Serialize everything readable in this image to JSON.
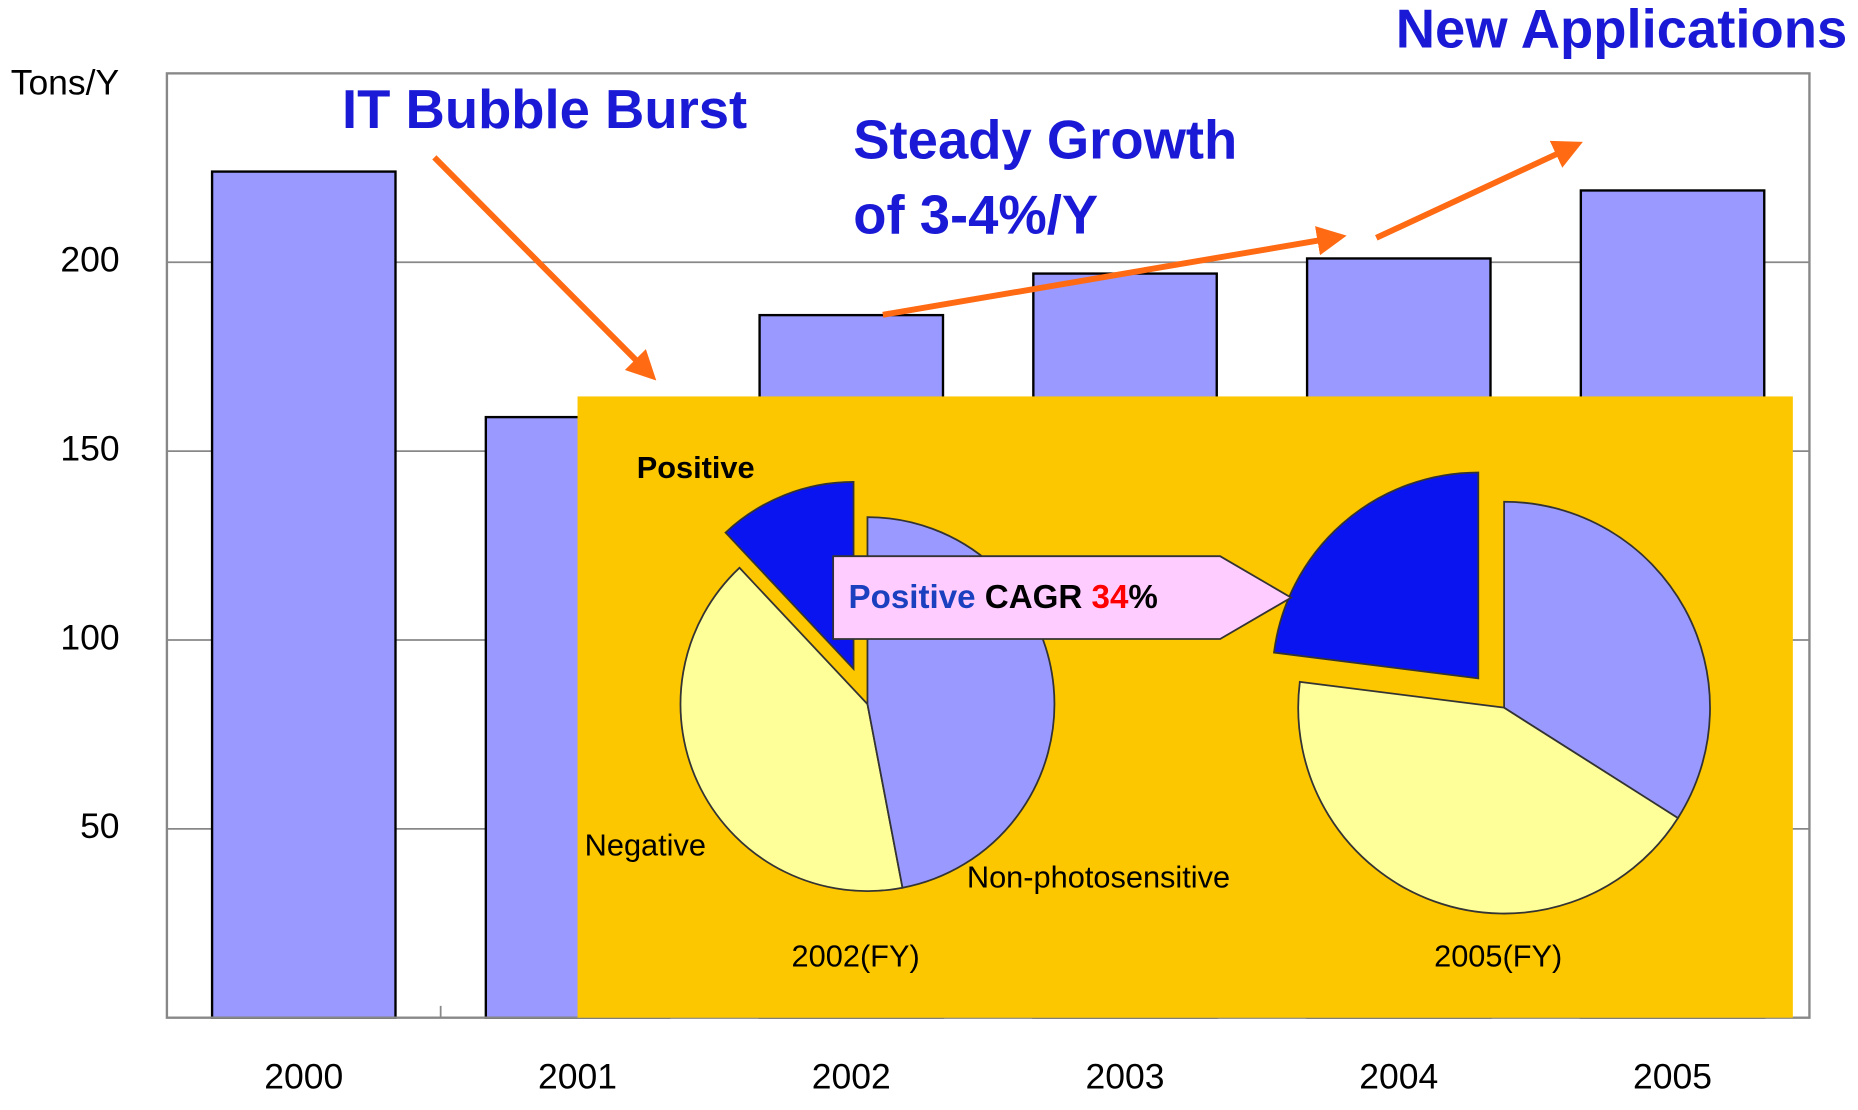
{
  "chart_data": [
    {
      "type": "bar",
      "y_label": "Tons/Y",
      "categories": [
        "2000",
        "2001",
        "2002",
        "2003",
        "2004",
        "2005"
      ],
      "values": [
        224,
        159,
        186,
        197,
        201,
        219
      ],
      "color": "#9999ff",
      "ylim": [
        0,
        250
      ],
      "yticks": [
        50,
        100,
        150,
        200
      ],
      "grid": true,
      "annotations": [
        "IT Bubble Burst",
        "Steady Growth",
        "of 3-4%/Y",
        "New Applications"
      ],
      "callout": [
        {
          "text": "Positive",
          "color": "#1a3fbf"
        },
        {
          "text": "CAGR",
          "color": "#000000"
        },
        {
          "text": "34",
          "color": "#ff0000"
        },
        {
          "text": "%",
          "color": "#000000"
        }
      ]
    },
    {
      "type": "pie",
      "title": "2002(FY)",
      "categories": [
        "Positive",
        "Negative",
        "Non-photosensitive"
      ],
      "values": [
        12,
        41,
        47
      ],
      "colors": [
        "#0a14f0",
        "#ffff99",
        "#9999ff"
      ],
      "explode": [
        true,
        false,
        false
      ]
    },
    {
      "type": "pie",
      "title": "2005(FY)",
      "values": [
        23,
        43,
        34
      ],
      "colors": [
        "#0a14f0",
        "#ffff99",
        "#9999ff"
      ],
      "explode": [
        true,
        false,
        false
      ]
    }
  ]
}
